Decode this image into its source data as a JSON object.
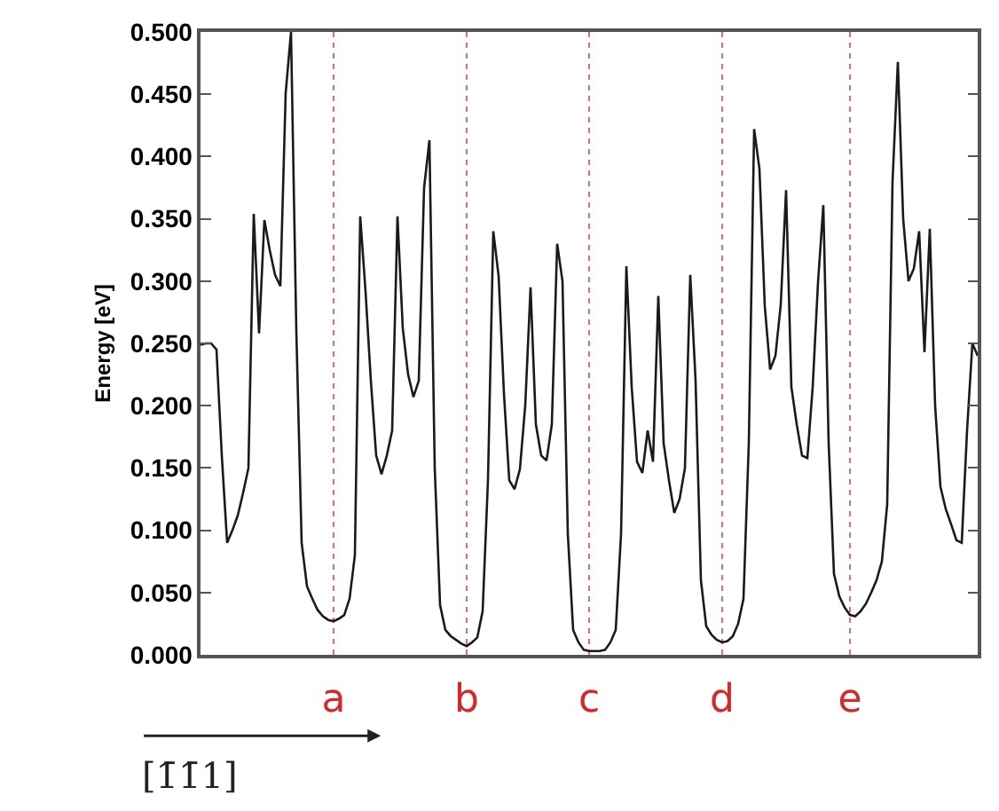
{
  "chart_data": {
    "type": "line",
    "ylabel": "Energy [eV]",
    "categories": [
      null,
      null,
      null,
      null,
      null,
      null,
      null,
      null,
      null,
      null,
      null,
      null,
      null,
      null,
      null,
      null,
      null,
      null,
      null,
      null,
      null,
      null,
      null,
      null,
      null,
      "a",
      null,
      null,
      null,
      null,
      null,
      null,
      null,
      null,
      null,
      null,
      null,
      null,
      null,
      null,
      null,
      null,
      null,
      null,
      null,
      null,
      null,
      null,
      null,
      null,
      "b",
      null,
      null,
      null,
      null,
      null,
      null,
      null,
      null,
      null,
      null,
      null,
      null,
      null,
      null,
      null,
      null,
      null,
      null,
      null,
      null,
      null,
      null,
      "c",
      null,
      null,
      null,
      null,
      null,
      null,
      null,
      null,
      null,
      null,
      null,
      null,
      null,
      null,
      null,
      null,
      null,
      null,
      null,
      null,
      null,
      null,
      null,
      null,
      "d",
      null,
      null,
      null,
      null,
      null,
      null,
      null,
      null,
      null,
      null,
      null,
      null,
      null,
      null,
      null,
      null,
      null,
      null,
      null,
      null,
      null,
      null,
      null,
      "e",
      null,
      null,
      null,
      null,
      null,
      null,
      null,
      null,
      null,
      null,
      null,
      null,
      null,
      null,
      null,
      null,
      null,
      null,
      null,
      null,
      null,
      null,
      null,
      null
    ],
    "values": [
      0.249,
      0.25,
      0.25,
      0.245,
      0.16,
      0.09,
      0.1,
      0.112,
      0.13,
      0.15,
      0.354,
      0.258,
      0.349,
      0.325,
      0.305,
      0.296,
      0.451,
      0.5,
      0.26,
      0.09,
      0.055,
      0.045,
      0.036,
      0.031,
      0.028,
      0.027,
      0.029,
      0.032,
      0.045,
      0.08,
      0.352,
      0.292,
      0.22,
      0.16,
      0.145,
      0.16,
      0.18,
      0.352,
      0.262,
      0.225,
      0.207,
      0.22,
      0.375,
      0.413,
      0.15,
      0.04,
      0.02,
      0.015,
      0.012,
      0.009,
      0.007,
      0.01,
      0.014,
      0.035,
      0.14,
      0.34,
      0.304,
      0.21,
      0.14,
      0.133,
      0.149,
      0.2,
      0.295,
      0.185,
      0.16,
      0.156,
      0.185,
      0.33,
      0.3,
      0.097,
      0.02,
      0.01,
      0.004,
      0.003,
      0.003,
      0.003,
      0.004,
      0.01,
      0.02,
      0.097,
      0.312,
      0.215,
      0.155,
      0.146,
      0.18,
      0.155,
      0.288,
      0.17,
      0.14,
      0.114,
      0.125,
      0.15,
      0.305,
      0.22,
      0.06,
      0.023,
      0.016,
      0.012,
      0.01,
      0.011,
      0.015,
      0.025,
      0.045,
      0.17,
      0.422,
      0.39,
      0.28,
      0.229,
      0.24,
      0.281,
      0.373,
      0.215,
      0.185,
      0.16,
      0.158,
      0.215,
      0.299,
      0.361,
      0.17,
      0.065,
      0.047,
      0.038,
      0.032,
      0.031,
      0.035,
      0.041,
      0.05,
      0.06,
      0.075,
      0.121,
      0.38,
      0.476,
      0.35,
      0.3,
      0.31,
      0.34,
      0.243,
      0.342,
      0.2,
      0.135,
      0.117,
      0.105,
      0.092,
      0.09,
      0.18,
      0.25,
      0.24
    ],
    "color": "#1a1a1a",
    "line_style": "solid",
    "marker": "none",
    "ylim": [
      0,
      0.5
    ],
    "yticks": [
      {
        "value": 0,
        "label": "0.000"
      },
      {
        "value": 0.05,
        "label": "0.050"
      },
      {
        "value": 0.1,
        "label": "0.100"
      },
      {
        "value": 0.15,
        "label": "0.150"
      },
      {
        "value": 0.2,
        "label": "0.200"
      },
      {
        "value": 0.25,
        "label": "0.250"
      },
      {
        "value": 0.3,
        "label": "0.300"
      },
      {
        "value": 0.35,
        "label": "0.350"
      },
      {
        "value": 0.4,
        "label": "0.400"
      },
      {
        "value": 0.45,
        "label": "0.450"
      },
      {
        "value": 0.5,
        "label": "0.500"
      }
    ],
    "annotations": [
      "[1̄1̄1]"
    ],
    "grid": "x",
    "legend": false
  }
}
